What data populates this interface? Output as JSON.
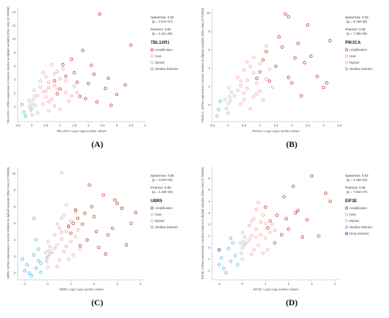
{
  "figure": {
    "panel_labels": [
      "(A)",
      "(B)",
      "(C)",
      "(D)"
    ]
  },
  "legend_colors": {
    "Amplification": "#c0392b",
    "Gain": "#f1a3ad",
    "Diploid": "#bdbdbd",
    "Shallow Deletion": "#4ab9d9",
    "Deep Deletion": "#2b3ba8"
  },
  "chart_data": [
    {
      "type": "scatter",
      "panel": "(A)",
      "gene": "TBL1XR1",
      "xlabel": "TBL1XR1: Log2 copy-number values",
      "ylabel": "TBL1XR1: mRNA expression z-scores relative to diploid samples (RNA Seq V2 RSEM)",
      "xlim": [
        -0.5,
        4
      ],
      "ylim": [
        -2.2,
        14.5
      ],
      "xticks": [
        "-0.5",
        "0",
        "0.5",
        "1",
        "1.5",
        "2",
        "2.5",
        "3",
        "3.5",
        "4"
      ],
      "yticks": [
        "0",
        "2",
        "4",
        "6",
        "8",
        "10",
        "12",
        "14"
      ],
      "spearman": "Spearman: 0.54",
      "spearman_p": "(p = 2.57e-27)",
      "pearson": "Pearson: 0.56",
      "pearson_p": "(p = 1.11e-26)",
      "legend": [
        "Amplification",
        "Gain",
        "Diploid",
        "Shallow Deletion"
      ],
      "points": {
        "Amplification": [
          [
            2.4,
            13.7
          ],
          [
            1.8,
            8.3
          ],
          [
            3.5,
            9.1
          ],
          [
            1.2,
            4.5
          ],
          [
            2.0,
            3.4
          ],
          [
            1.5,
            5.0
          ],
          [
            2.7,
            4.2
          ],
          [
            3.0,
            1.8
          ],
          [
            2.3,
            0.7
          ],
          [
            1.0,
            2.6
          ],
          [
            1.7,
            1.5
          ],
          [
            2.1,
            6.1
          ],
          [
            1.4,
            7.0
          ],
          [
            0.8,
            3.8
          ],
          [
            2.6,
            2.7
          ],
          [
            1.9,
            1.2
          ],
          [
            3.3,
            3.2
          ],
          [
            1.1,
            6.2
          ],
          [
            2.8,
            0.2
          ],
          [
            1.6,
            3.6
          ],
          [
            0.9,
            1.9
          ],
          [
            2.2,
            4.8
          ]
        ],
        "Gain": [
          [
            0.2,
            1.6
          ],
          [
            0.5,
            2.3
          ],
          [
            0.8,
            3.1
          ],
          [
            1.0,
            4.1
          ],
          [
            0.4,
            0.4
          ],
          [
            0.6,
            -0.6
          ],
          [
            0.9,
            5.2
          ],
          [
            0.3,
            2.9
          ],
          [
            1.2,
            2.1
          ],
          [
            0.7,
            1.1
          ],
          [
            0.5,
            4.4
          ],
          [
            1.3,
            0.8
          ],
          [
            0.6,
            3.6
          ],
          [
            0.4,
            2.2
          ],
          [
            1.1,
            5.6
          ],
          [
            0.8,
            0.1
          ],
          [
            0.2,
            -0.9
          ],
          [
            0.9,
            2.6
          ],
          [
            1.5,
            3.0
          ],
          [
            0.3,
            3.8
          ],
          [
            0.7,
            6.2
          ],
          [
            1.4,
            1.6
          ],
          [
            0.6,
            0.7
          ],
          [
            1.0,
            -0.4
          ],
          [
            0.5,
            1.4
          ],
          [
            1.2,
            3.8
          ],
          [
            0.8,
            4.9
          ],
          [
            0.4,
            5.0
          ],
          [
            1.6,
            2.1
          ],
          [
            0.6,
            2.8
          ]
        ],
        "Diploid": [
          [
            0.0,
            0.4
          ],
          [
            0.05,
            1.0
          ],
          [
            -0.05,
            -0.5
          ],
          [
            0.1,
            1.6
          ],
          [
            0.0,
            -1.2
          ],
          [
            0.12,
            0.2
          ],
          [
            -0.1,
            0.9
          ],
          [
            0.08,
            2.4
          ],
          [
            0.02,
            -0.3
          ],
          [
            -0.08,
            0.0
          ]
        ],
        "Shallow Deletion": [
          [
            -0.28,
            -0.8
          ],
          [
            -0.35,
            0.3
          ],
          [
            -0.22,
            -1.4
          ]
        ]
      }
    },
    {
      "type": "scatter",
      "panel": "(B)",
      "gene": "PIK3CA",
      "xlabel": "PIK3CA: Log2 copy-number values",
      "ylabel": "PIK3CA: mRNA expression z-scores relative to diploid samples (RNA Seq V2 RSEM)",
      "xlim": [
        -0.5,
        3.5
      ],
      "ylim": [
        -1.8,
        10.5
      ],
      "xticks": [
        "-0.5",
        "0",
        "0.5",
        "1",
        "1.5",
        "2",
        "2.5",
        "3",
        "3.5"
      ],
      "yticks": [
        "0",
        "2",
        "4",
        "6",
        "8",
        "10"
      ],
      "spearman": "Spearman: 0.63",
      "spearman_p": "(p = 6.75e-32)",
      "pearson": "Pearson: 0.58",
      "pearson_p": "(p = 7.30e-26)",
      "legend": [
        "Amplification",
        "Gain",
        "Diploid",
        "Shallow Deletion"
      ],
      "points": {
        "Amplification": [
          [
            1.8,
            9.9
          ],
          [
            1.9,
            9.6
          ],
          [
            2.5,
            8.7
          ],
          [
            3.2,
            7.0
          ],
          [
            1.2,
            5.8
          ],
          [
            2.2,
            6.7
          ],
          [
            1.5,
            4.2
          ],
          [
            2.8,
            3.1
          ],
          [
            1.0,
            3.6
          ],
          [
            2.0,
            2.4
          ],
          [
            1.7,
            6.3
          ],
          [
            2.4,
            4.6
          ],
          [
            3.0,
            1.9
          ],
          [
            1.3,
            2.6
          ],
          [
            2.6,
            5.3
          ],
          [
            1.1,
            4.9
          ],
          [
            1.9,
            3.0
          ],
          [
            2.3,
            1.0
          ],
          [
            1.6,
            7.4
          ],
          [
            3.1,
            2.4
          ],
          [
            0.9,
            2.9
          ],
          [
            2.1,
            5.1
          ]
        ],
        "Gain": [
          [
            0.2,
            1.0
          ],
          [
            0.4,
            2.1
          ],
          [
            0.6,
            2.7
          ],
          [
            0.8,
            3.5
          ],
          [
            0.5,
            0.6
          ],
          [
            1.0,
            1.5
          ],
          [
            0.3,
            3.0
          ],
          [
            0.7,
            4.2
          ],
          [
            0.9,
            1.2
          ],
          [
            0.6,
            1.8
          ],
          [
            1.2,
            2.8
          ],
          [
            0.4,
            0.1
          ],
          [
            0.8,
            5.2
          ],
          [
            1.1,
            0.5
          ],
          [
            0.5,
            3.8
          ],
          [
            0.7,
            -0.4
          ],
          [
            1.3,
            3.9
          ],
          [
            0.3,
            1.6
          ],
          [
            0.9,
            2.4
          ],
          [
            1.0,
            4.5
          ],
          [
            0.6,
            4.7
          ],
          [
            1.4,
            1.9
          ],
          [
            0.4,
            2.6
          ],
          [
            0.8,
            0.9
          ],
          [
            1.2,
            6.4
          ],
          [
            0.5,
            1.3
          ]
        ],
        "Diploid": [
          [
            0.0,
            0.2
          ],
          [
            0.05,
            0.9
          ],
          [
            -0.05,
            -0.4
          ],
          [
            0.1,
            1.4
          ],
          [
            0.0,
            -0.9
          ],
          [
            0.08,
            0.5
          ],
          [
            -0.1,
            0.6
          ],
          [
            0.02,
            1.9
          ]
        ],
        "Shallow Deletion": [
          [
            -0.3,
            -0.5
          ],
          [
            -0.25,
            0.4
          ],
          [
            -0.35,
            -1.2
          ]
        ]
      }
    },
    {
      "type": "scatter",
      "panel": "(C)",
      "gene": "UBR5",
      "xlabel": "UBR5: Log2 copy-number values",
      "ylabel": "UBR5: mRNA expression z-scores relative to diploid samples (RNA Seq V2 RSEM)",
      "xlim": [
        -1.3,
        4.2
      ],
      "ylim": [
        -2.8,
        10.8
      ],
      "xticks": [
        "-1",
        "0",
        "1",
        "2",
        "3",
        "4"
      ],
      "yticks": [
        "-2",
        "0",
        "2",
        "4",
        "6",
        "8",
        "10"
      ],
      "spearman": "Spearman: 0.69",
      "spearman_p": "(p = 2.57e-40)",
      "pearson": "Pearson: 0.65",
      "pearson_p": "(p = 1.23e-34)",
      "legend": [
        "Amplification",
        "Gain",
        "Diploid",
        "Shallow Deletion"
      ],
      "points": {
        "Amplification": [
          [
            1.8,
            8.6
          ],
          [
            2.4,
            7.4
          ],
          [
            3.0,
            6.4
          ],
          [
            3.6,
            4.0
          ],
          [
            1.2,
            5.6
          ],
          [
            2.0,
            4.8
          ],
          [
            1.5,
            3.9
          ],
          [
            2.6,
            2.6
          ],
          [
            1.0,
            2.8
          ],
          [
            3.2,
            5.8
          ],
          [
            1.7,
            2.0
          ],
          [
            2.2,
            1.1
          ],
          [
            1.3,
            4.6
          ],
          [
            2.8,
            3.4
          ],
          [
            0.9,
            3.6
          ],
          [
            1.9,
            6.0
          ],
          [
            3.4,
            1.4
          ],
          [
            1.4,
            1.3
          ],
          [
            2.5,
            0.3
          ],
          [
            1.1,
            4.0
          ],
          [
            2.1,
            3.0
          ],
          [
            1.6,
            5.2
          ],
          [
            3.8,
            5.3
          ],
          [
            2.9,
            6.8
          ]
        ],
        "Gain": [
          [
            0.2,
            0.5
          ],
          [
            0.4,
            1.4
          ],
          [
            0.6,
            2.1
          ],
          [
            0.8,
            3.0
          ],
          [
            0.5,
            -0.4
          ],
          [
            1.0,
            1.8
          ],
          [
            0.3,
            2.6
          ],
          [
            0.7,
            0.6
          ],
          [
            0.9,
            3.7
          ],
          [
            0.6,
            4.6
          ],
          [
            1.2,
            2.4
          ],
          [
            0.4,
            -1.2
          ],
          [
            0.8,
            1.2
          ],
          [
            1.1,
            0.2
          ],
          [
            0.5,
            3.4
          ],
          [
            0.7,
            5.0
          ],
          [
            1.3,
            3.2
          ],
          [
            0.3,
            1.0
          ],
          [
            0.9,
            -0.3
          ],
          [
            1.0,
            4.3
          ],
          [
            0.6,
            2.9
          ],
          [
            1.4,
            0.9
          ],
          [
            0.4,
            3.9
          ],
          [
            0.8,
            6.2
          ],
          [
            0.6,
            10.1
          ],
          [
            1.2,
            5.4
          ]
        ],
        "Diploid": [
          [
            0.0,
            0.0
          ],
          [
            0.05,
            0.7
          ],
          [
            -0.05,
            -0.6
          ],
          [
            0.1,
            1.2
          ],
          [
            0.0,
            -1.3
          ],
          [
            0.08,
            0.3
          ],
          [
            -0.1,
            0.5
          ],
          [
            0.02,
            1.8
          ],
          [
            -0.04,
            -0.2
          ]
        ],
        "Shallow Deletion": [
          [
            -0.3,
            -0.8
          ],
          [
            -0.5,
            -1.4
          ],
          [
            -0.8,
            -2.0
          ],
          [
            -1.0,
            -1.7
          ],
          [
            -0.6,
            0.2
          ],
          [
            -0.4,
            0.9
          ],
          [
            -0.9,
            -1.0
          ],
          [
            -0.7,
            -2.3
          ],
          [
            -0.5,
            2.0
          ],
          [
            -0.3,
            -1.9
          ],
          [
            -0.6,
            4.6
          ],
          [
            -1.1,
            -0.3
          ],
          [
            -0.4,
            -0.5
          ]
        ]
      }
    },
    {
      "type": "scatter",
      "panel": "(D)",
      "gene": "EIF3E",
      "xlabel": "EIF3E: Log2 copy-number values",
      "ylabel": "EIF3E: mRNA expression z-scores relative to diploid samples (RNA Seq V2 RSEM)",
      "xlim": [
        -1.3,
        4.2
      ],
      "ylim": [
        -2.8,
        7.0
      ],
      "xticks": [
        "-1",
        "0",
        "1",
        "2",
        "3",
        "4"
      ],
      "yticks": [
        "-2",
        "-1",
        "0",
        "1",
        "2",
        "3",
        "4",
        "5",
        "6"
      ],
      "spearman": "Spearman: 0.63",
      "spearman_p": "(p = 1.16e-31)",
      "pearson": "Pearson: 0.59",
      "pearson_p": "(p = 7.64e-27)",
      "legend": [
        "Amplification",
        "Gain",
        "Diploid",
        "Shallow Deletion",
        "Deep Deletion"
      ],
      "points": {
        "Amplification": [
          [
            3.0,
            6.2
          ],
          [
            3.6,
            4.7
          ],
          [
            2.4,
            3.2
          ],
          [
            1.8,
            4.4
          ],
          [
            2.2,
            5.3
          ],
          [
            1.2,
            2.3
          ],
          [
            2.0,
            1.6
          ],
          [
            3.3,
            1.0
          ],
          [
            1.5,
            2.8
          ],
          [
            2.6,
            0.9
          ],
          [
            1.0,
            3.5
          ],
          [
            2.8,
            2.4
          ],
          [
            1.7,
            1.1
          ],
          [
            3.8,
            4.0
          ],
          [
            1.4,
            0.4
          ],
          [
            2.3,
            3.0
          ],
          [
            1.1,
            1.7
          ],
          [
            1.9,
            2.5
          ]
        ],
        "Gain": [
          [
            0.2,
            0.4
          ],
          [
            0.4,
            1.0
          ],
          [
            0.6,
            1.6
          ],
          [
            0.8,
            2.2
          ],
          [
            0.5,
            -0.2
          ],
          [
            1.0,
            0.8
          ],
          [
            0.3,
            1.9
          ],
          [
            0.7,
            0.2
          ],
          [
            0.9,
            2.8
          ],
          [
            0.6,
            3.3
          ],
          [
            1.2,
            1.3
          ],
          [
            0.4,
            -0.6
          ],
          [
            0.8,
            1.1
          ],
          [
            1.1,
            -0.2
          ],
          [
            0.5,
            2.5
          ],
          [
            0.7,
            3.9
          ],
          [
            1.3,
            2.0
          ],
          [
            0.3,
            0.7
          ],
          [
            0.9,
            -0.5
          ],
          [
            1.0,
            2.1
          ],
          [
            0.6,
            0.9
          ],
          [
            1.4,
            1.5
          ],
          [
            0.4,
            2.3
          ]
        ],
        "Diploid": [
          [
            0.0,
            0.0
          ],
          [
            0.05,
            0.5
          ],
          [
            -0.05,
            -0.5
          ],
          [
            0.1,
            0.9
          ],
          [
            0.0,
            -1.0
          ],
          [
            0.08,
            0.2
          ],
          [
            -0.1,
            0.4
          ],
          [
            0.02,
            1.3
          ]
        ],
        "Shallow Deletion": [
          [
            -0.3,
            -0.7
          ],
          [
            -0.5,
            -1.2
          ],
          [
            -0.8,
            -1.8
          ],
          [
            -1.0,
            -1.5
          ],
          [
            -0.6,
            -0.1
          ],
          [
            -0.4,
            0.4
          ],
          [
            -0.9,
            -0.9
          ],
          [
            -0.7,
            -2.2
          ],
          [
            -0.2,
            -1.5
          ],
          [
            -0.5,
            0.8
          ]
        ],
        "Deep Deletion": [
          [
            -1.0,
            -0.2
          ]
        ]
      }
    }
  ]
}
